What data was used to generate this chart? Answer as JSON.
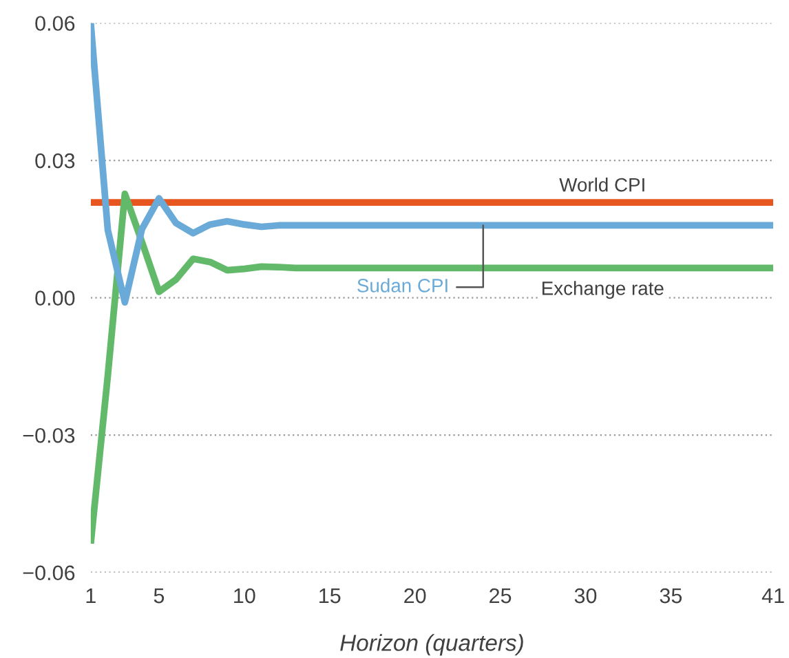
{
  "chart_data": {
    "type": "line",
    "xlabel": "Horizon (quarters)",
    "x": [
      1,
      2,
      3,
      4,
      5,
      6,
      7,
      8,
      9,
      10,
      11,
      12,
      13,
      14,
      15,
      16,
      17,
      18,
      19,
      20,
      21,
      22,
      23,
      24,
      25,
      26,
      27,
      28,
      29,
      30,
      31,
      32,
      33,
      34,
      35,
      36,
      37,
      38,
      39,
      40,
      41
    ],
    "series": [
      {
        "name": "World CPI",
        "color": "#e8561f",
        "values": [
          0.0208,
          0.0208,
          0.0208,
          0.0208,
          0.0208,
          0.0208,
          0.0208,
          0.0208,
          0.0208,
          0.0208,
          0.0208,
          0.0208,
          0.0208,
          0.0208,
          0.0208,
          0.0208,
          0.0208,
          0.0208,
          0.0208,
          0.0208,
          0.0208,
          0.0208,
          0.0208,
          0.0208,
          0.0208,
          0.0208,
          0.0208,
          0.0208,
          0.0208,
          0.0208,
          0.0208,
          0.0208,
          0.0208,
          0.0208,
          0.0208,
          0.0208,
          0.0208,
          0.0208,
          0.0208,
          0.0208,
          0.0208
        ]
      },
      {
        "name": "Exchange rate",
        "color": "#63b96a",
        "values": [
          -0.0537,
          -0.017,
          0.0227,
          0.0122,
          0.0013,
          0.004,
          0.0085,
          0.0078,
          0.006,
          0.0063,
          0.0068,
          0.0067,
          0.0065,
          0.0065,
          0.0065,
          0.0065,
          0.0065,
          0.0065,
          0.0065,
          0.0065,
          0.0065,
          0.0065,
          0.0065,
          0.0065,
          0.0065,
          0.0065,
          0.0065,
          0.0065,
          0.0065,
          0.0065,
          0.0065,
          0.0065,
          0.0065,
          0.0065,
          0.0065,
          0.0065,
          0.0065,
          0.0065,
          0.0065,
          0.0065,
          0.0065
        ]
      },
      {
        "name": "Sudan CPI",
        "color": "#6aaad8",
        "values": [
          0.06,
          0.0148,
          -0.001,
          0.015,
          0.0217,
          0.0163,
          0.0141,
          0.016,
          0.0167,
          0.016,
          0.0155,
          0.0158,
          0.0158,
          0.0158,
          0.0158,
          0.0158,
          0.0158,
          0.0158,
          0.0158,
          0.0158,
          0.0158,
          0.0158,
          0.0158,
          0.0158,
          0.0158,
          0.0158,
          0.0158,
          0.0158,
          0.0158,
          0.0158,
          0.0158,
          0.0158,
          0.0158,
          0.0158,
          0.0158,
          0.0158,
          0.0158,
          0.0158,
          0.0158,
          0.0158,
          0.0158
        ]
      }
    ],
    "xlim": [
      1,
      41
    ],
    "xticks": [
      1,
      5,
      10,
      15,
      20,
      25,
      30,
      35,
      41
    ],
    "ylim": [
      -0.06,
      0.06
    ],
    "yticks": [
      {
        "value": 0.06,
        "label": "0.06"
      },
      {
        "value": 0.03,
        "label": "0.03"
      },
      {
        "value": 0.0,
        "label": "0.00"
      },
      {
        "value": -0.03,
        "label": "−0.03"
      },
      {
        "value": -0.06,
        "label": "−0.06"
      }
    ],
    "grid": "y",
    "line_style": "solid",
    "marker": "none"
  }
}
